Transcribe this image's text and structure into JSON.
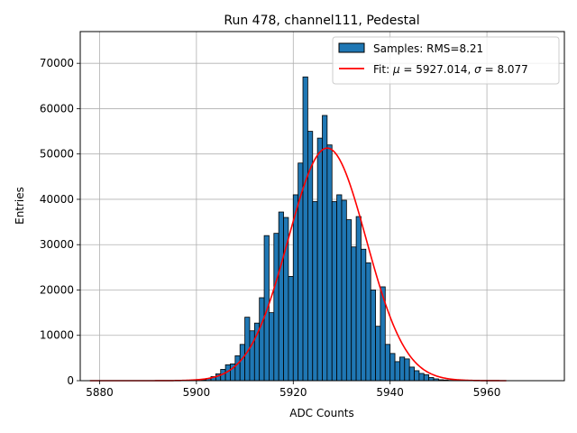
{
  "chart_data": {
    "type": "bar",
    "title": "Run 478, channel111, Pedestal",
    "xlabel": "ADC Counts",
    "ylabel": "Entries",
    "xlim": [
      5876,
      5976
    ],
    "ylim": [
      0,
      77000
    ],
    "grid": true,
    "legend_position": "top-right",
    "x_ticks": [
      5880,
      5900,
      5920,
      5940,
      5960
    ],
    "x_tick_labels": [
      "5880",
      "5900",
      "5920",
      "5940",
      "5960"
    ],
    "y_ticks": [
      0,
      10000,
      20000,
      30000,
      40000,
      50000,
      60000,
      70000
    ],
    "y_tick_labels": [
      "0",
      "10000",
      "20000",
      "30000",
      "40000",
      "50000",
      "60000",
      "70000"
    ],
    "histogram": {
      "name": "Samples: RMS=8.21",
      "color": "#1f77b4",
      "edge_color": "#000000",
      "bin_width": 1,
      "bin_starts": [
        5901,
        5902,
        5903,
        5904,
        5905,
        5906,
        5907,
        5908,
        5909,
        5910,
        5911,
        5912,
        5913,
        5914,
        5915,
        5916,
        5917,
        5918,
        5919,
        5920,
        5921,
        5922,
        5923,
        5924,
        5925,
        5926,
        5927,
        5928,
        5929,
        5930,
        5931,
        5932,
        5933,
        5934,
        5935,
        5936,
        5937,
        5938,
        5939,
        5940,
        5941,
        5942,
        5943,
        5944,
        5945,
        5946,
        5947,
        5948,
        5949,
        5950,
        5951,
        5952,
        5953
      ],
      "counts": [
        200,
        500,
        900,
        1500,
        2500,
        3500,
        3700,
        5500,
        8000,
        14000,
        11000,
        12700,
        18300,
        32000,
        15000,
        32500,
        37200,
        36000,
        23000,
        41000,
        48000,
        67000,
        55000,
        39500,
        53500,
        58500,
        52000,
        39500,
        41000,
        39800,
        35500,
        29500,
        36200,
        29000,
        26000,
        20000,
        12000,
        20700,
        8000,
        6000,
        4200,
        5200,
        4800,
        3000,
        2200,
        1600,
        1300,
        700,
        400,
        200,
        150,
        80,
        40
      ]
    },
    "fit": {
      "name": "Fit: μ = 5927.014, σ = 8.077",
      "label_prefix": "Fit: ",
      "mu_symbol": "μ",
      "mu_text": " = 5927.014, ",
      "sigma_symbol": "σ",
      "sigma_text": " = 8.077",
      "mu": 5927.014,
      "sigma": 8.077,
      "amplitude": 51300,
      "x_range": [
        5878,
        5964
      ],
      "color": "#ff0000"
    }
  }
}
